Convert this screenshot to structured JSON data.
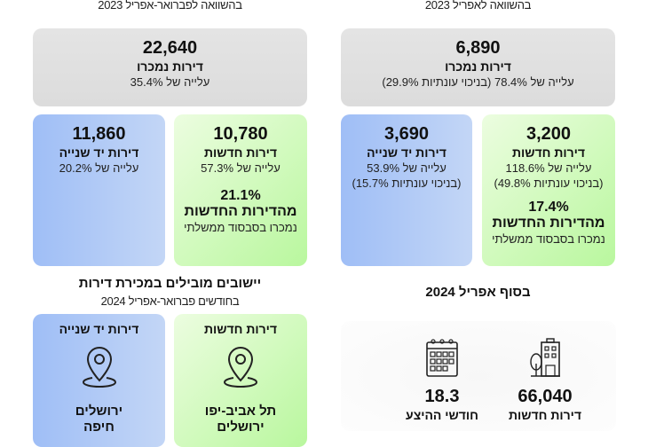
{
  "left": {
    "caption": "בהשוואה לפברואר-אפריל 2023",
    "total": {
      "value": "22,640",
      "label": "דירות נמכרו",
      "change": "עלייה של 35.4%"
    },
    "new": {
      "value": "10,780",
      "label": "דירות חדשות",
      "change": "עלייה של 57.3%",
      "share": "21.1%",
      "share_label": "מהדירות החדשות",
      "share_note": "נמכרו בסבסוד ממשלתי"
    },
    "second": {
      "value": "11,860",
      "label": "דירות יד שנייה",
      "change": "עלייה של 20.2%"
    }
  },
  "right": {
    "caption": "בהשוואה לאפריל 2023",
    "total": {
      "value": "6,890",
      "label": "דירות נמכרו",
      "change": "עלייה של 78.4% (בניכוי עונתיות 29.9%)"
    },
    "new": {
      "value": "3,200",
      "label": "דירות חדשות",
      "change": "עלייה של 118.6%",
      "seasonal": "(בניכוי עונתיות 49.8%)",
      "share": "17.4%",
      "share_label": "מהדירות החדשות",
      "share_note": "נמכרו בסבסוד ממשלתי"
    },
    "second": {
      "value": "3,690",
      "label": "דירות יד שנייה",
      "change": "עלייה של 53.9%",
      "seasonal": "(בניכוי עונתיות 15.7%)"
    }
  },
  "leading": {
    "title": "יישובים מובילים במכירת דירות",
    "subtitle": "בחודשים פברואר-אפריל 2024",
    "new": {
      "label": "דירות חדשות",
      "cities": [
        "תל אביב-יפו",
        "ירושלים"
      ]
    },
    "second": {
      "label": "דירות יד שנייה",
      "cities": [
        "ירושלים",
        "חיפה"
      ]
    }
  },
  "inventory": {
    "title": "בסוף אפריל 2024",
    "apartments": {
      "value": "66,040",
      "label": "דירות חדשות"
    },
    "months": {
      "value": "18.3",
      "label": "חודשי ההיצע"
    }
  }
}
